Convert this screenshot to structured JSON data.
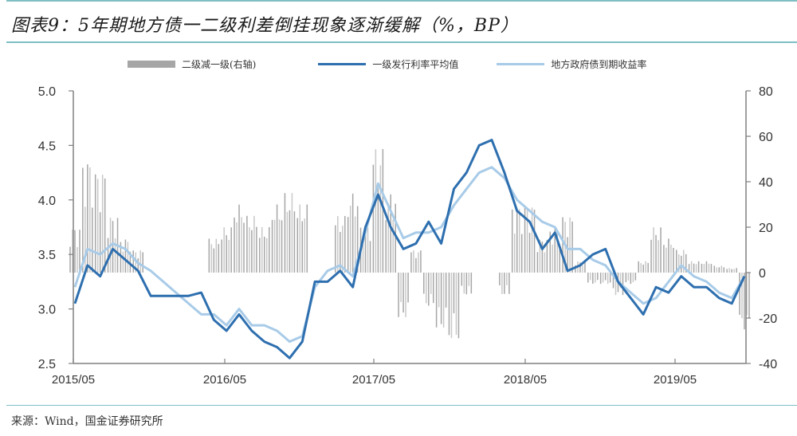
{
  "header": {
    "title": "图表9：5年期地方债一二级利差倒挂现象逐渐缓解（%，BP）"
  },
  "legend": [
    {
      "label": "二级减一级(右轴)",
      "color": "#a6a6a6",
      "type": "bar"
    },
    {
      "label": "一级发行利率平均值",
      "color": "#2e6faf",
      "type": "line"
    },
    {
      "label": "地方政府债到期收益率",
      "color": "#a8cbe8",
      "type": "line"
    }
  ],
  "footer": {
    "source": "来源：Wind，国金证券研究所"
  },
  "chart_data": {
    "type": "line",
    "title": "图表9：5年期地方债一二级利差倒挂现象逐渐缓解（%，BP）",
    "xlabel": "",
    "ylabel": "%",
    "y2label": "BP",
    "x_ticks": [
      "2015/05",
      "2016/05",
      "2017/05",
      "2018/05",
      "2019/05"
    ],
    "ylim": [
      2.5,
      5.0
    ],
    "y_ticks": [
      2.5,
      3.0,
      3.5,
      4.0,
      4.5,
      5.0
    ],
    "y2lim": [
      -40,
      80
    ],
    "y2_ticks": [
      -40,
      -20,
      0,
      20,
      40,
      60,
      80
    ],
    "grid": false,
    "legend_position": "top",
    "x": [
      "2015/05",
      "2015/06",
      "2015/07",
      "2015/08",
      "2015/09",
      "2015/10",
      "2015/11",
      "2015/12",
      "2016/01",
      "2016/02",
      "2016/03",
      "2016/04",
      "2016/05",
      "2016/06",
      "2016/07",
      "2016/08",
      "2016/09",
      "2016/10",
      "2016/11",
      "2016/12",
      "2017/01",
      "2017/02",
      "2017/03",
      "2017/04",
      "2017/05",
      "2017/06",
      "2017/07",
      "2017/08",
      "2017/09",
      "2017/10",
      "2017/11",
      "2017/12",
      "2018/01",
      "2018/02",
      "2018/03",
      "2018/04",
      "2018/05",
      "2018/06",
      "2018/07",
      "2018/08",
      "2018/09",
      "2018/10",
      "2018/11",
      "2018/12",
      "2019/01",
      "2019/02",
      "2019/03",
      "2019/04",
      "2019/05",
      "2019/06",
      "2019/07",
      "2019/08",
      "2019/09",
      "2019/10"
    ],
    "series": [
      {
        "name": "一级发行利率平均值",
        "axis": "left",
        "values": [
          3.05,
          3.4,
          3.3,
          3.55,
          3.45,
          3.35,
          3.12,
          3.12,
          3.12,
          3.12,
          3.15,
          2.9,
          2.8,
          2.95,
          2.8,
          2.7,
          2.65,
          2.55,
          2.7,
          3.25,
          3.25,
          3.35,
          3.2,
          3.75,
          4.05,
          3.75,
          3.55,
          3.6,
          3.8,
          3.6,
          4.1,
          4.25,
          4.5,
          4.55,
          4.25,
          3.9,
          3.8,
          3.55,
          3.7,
          3.35,
          3.4,
          3.5,
          3.55,
          3.25,
          3.1,
          2.95,
          3.2,
          3.15,
          3.3,
          3.2,
          3.2,
          3.1,
          3.05,
          3.3
        ]
      },
      {
        "name": "地方政府债到期收益率",
        "axis": "left",
        "values": [
          3.2,
          3.55,
          3.5,
          3.6,
          3.55,
          3.42,
          3.35,
          3.25,
          3.15,
          3.05,
          2.95,
          2.95,
          2.85,
          3.0,
          2.85,
          2.85,
          2.8,
          2.7,
          2.75,
          3.2,
          3.35,
          3.4,
          3.3,
          3.7,
          4.15,
          3.9,
          3.65,
          3.7,
          3.7,
          3.75,
          3.95,
          4.1,
          4.25,
          4.3,
          4.2,
          4.0,
          3.9,
          3.8,
          3.75,
          3.55,
          3.55,
          3.45,
          3.4,
          3.25,
          3.15,
          3.05,
          3.1,
          3.25,
          3.4,
          3.3,
          3.25,
          3.15,
          3.1,
          3.3
        ]
      },
      {
        "name": "二级减一级(右轴)",
        "axis": "right",
        "type": "bar",
        "values": [
          20,
          50,
          45,
          25,
          15,
          10,
          null,
          null,
          null,
          null,
          0,
          15,
          20,
          30,
          25,
          20,
          30,
          35,
          30,
          null,
          null,
          25,
          35,
          20,
          55,
          35,
          -20,
          10,
          -15,
          -25,
          -30,
          -10,
          null,
          0,
          -10,
          30,
          30,
          15,
          20,
          25,
          5,
          -5,
          -5,
          -10,
          -5,
          5,
          20,
          15,
          10,
          5,
          5,
          3,
          2,
          -25
        ]
      }
    ]
  }
}
